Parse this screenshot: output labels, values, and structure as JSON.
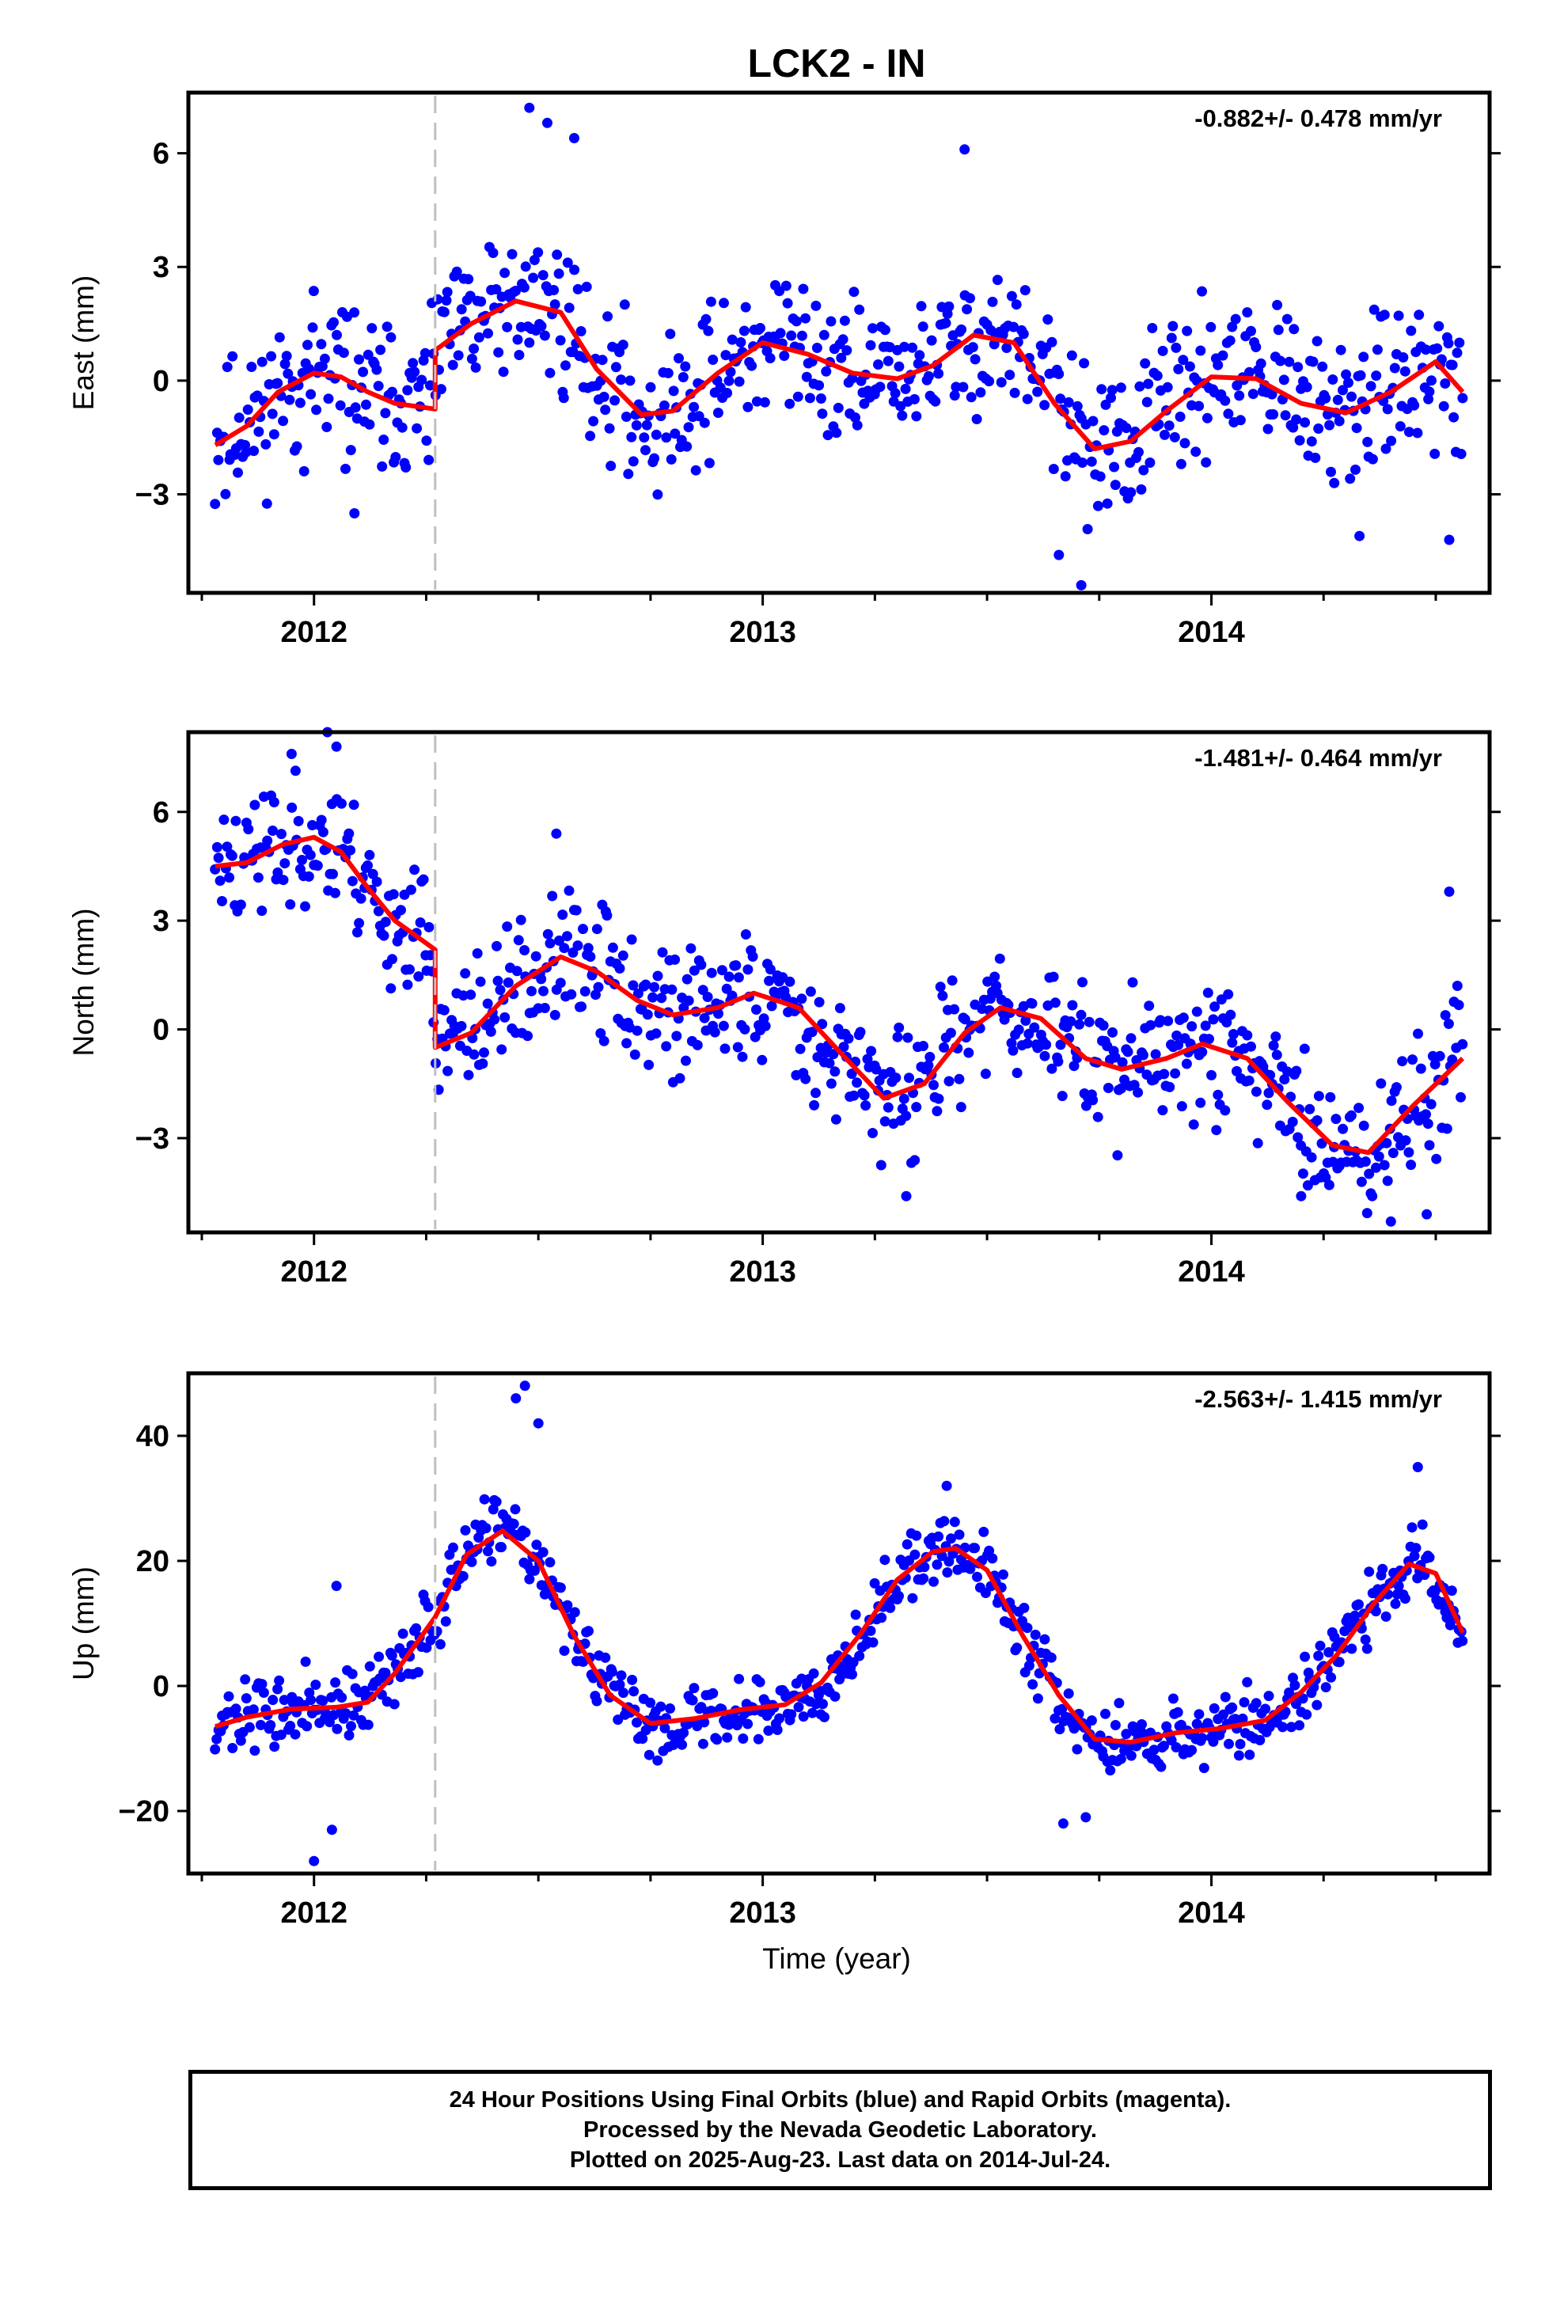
{
  "title": "LCK2 - IN",
  "chart_data": [
    {
      "type": "scatter",
      "component": "East",
      "ylabel": "East (mm)",
      "xlabel": "",
      "velocity": "-0.882+/- 0.478 mm/yr",
      "xlim": [
        2011.72,
        2014.62
      ],
      "ylim": [
        -5.6,
        7.6
      ],
      "yticks": [
        6,
        3,
        0,
        -3
      ],
      "ytick_labels": [
        "6",
        "3",
        "0",
        "−3"
      ],
      "xticks": [
        2012,
        2013,
        2014
      ],
      "xtick_labels": [
        "2012",
        "2013",
        "2014"
      ],
      "offset_epoch": 2012.27,
      "series": [
        {
          "name": "24 Hour Positions Using Final Orbits",
          "color": "#0000ff",
          "style": "points",
          "x_start": 2011.78,
          "x_end": 2014.56,
          "count": 720,
          "seed": 11,
          "approx_scatter": 1.3,
          "extreme_points": [
            [
              2012.48,
              7.2
            ],
            [
              2012.52,
              6.8
            ],
            [
              2012.58,
              6.4
            ],
            [
              2013.45,
              6.1
            ],
            [
              2013.71,
              -5.4
            ],
            [
              2013.66,
              -4.6
            ],
            [
              2014.53,
              -4.2
            ],
            [
              2014.33,
              -4.1
            ],
            [
              2012.09,
              -3.5
            ]
          ]
        },
        {
          "name": "Model fit",
          "color": "#ff0000",
          "style": "line",
          "x": [
            2011.78,
            2011.85,
            2011.92,
            2012.0,
            2012.06,
            2012.12,
            2012.18,
            2012.27,
            2012.27,
            2012.35,
            2012.45,
            2012.55,
            2012.63,
            2012.73,
            2012.8,
            2012.9,
            2013.0,
            2013.1,
            2013.2,
            2013.3,
            2013.38,
            2013.47,
            2013.56,
            2013.65,
            2013.74,
            2013.82,
            2013.9,
            2014.0,
            2014.1,
            2014.2,
            2014.3,
            2014.4,
            2014.5,
            2014.56
          ],
          "y": [
            -1.7,
            -1.2,
            -0.3,
            0.2,
            0.1,
            -0.3,
            -0.6,
            -0.75,
            0.8,
            1.5,
            2.1,
            1.8,
            0.3,
            -0.9,
            -0.8,
            0.2,
            1.0,
            0.7,
            0.2,
            0.05,
            0.4,
            1.2,
            1.0,
            -0.6,
            -1.8,
            -1.6,
            -0.8,
            0.1,
            0.05,
            -0.6,
            -0.85,
            -0.3,
            0.5,
            -0.3
          ]
        }
      ]
    },
    {
      "type": "scatter",
      "component": "North",
      "ylabel": "North (mm)",
      "xlabel": "",
      "velocity": "-1.481+/- 0.464 mm/yr",
      "xlim": [
        2011.72,
        2014.62
      ],
      "ylim": [
        -5.6,
        8.2
      ],
      "yticks": [
        6,
        3,
        0,
        -3
      ],
      "ytick_labels": [
        "6",
        "3",
        "0",
        "−3"
      ],
      "xticks": [
        2012,
        2013,
        2014
      ],
      "xtick_labels": [
        "2012",
        "2013",
        "2014"
      ],
      "offset_epoch": 2012.27,
      "series": [
        {
          "name": "24 Hour Positions Using Final Orbits",
          "color": "#0000ff",
          "style": "points",
          "x_start": 2011.78,
          "x_end": 2014.56,
          "count": 720,
          "seed": 23,
          "approx_scatter": 1.2,
          "extreme_points": [
            [
              2012.03,
              8.2
            ],
            [
              2012.05,
              7.8
            ],
            [
              2011.95,
              7.6
            ],
            [
              2012.54,
              5.4
            ],
            [
              2014.53,
              3.8
            ],
            [
              2014.4,
              -5.3
            ],
            [
              2014.48,
              -5.1
            ],
            [
              2014.2,
              -4.6
            ],
            [
              2013.32,
              -4.6
            ]
          ]
        },
        {
          "name": "Model fit",
          "color": "#ff0000",
          "style": "line",
          "x": [
            2011.78,
            2011.85,
            2011.93,
            2012.0,
            2012.06,
            2012.12,
            2012.18,
            2012.27,
            2012.27,
            2012.35,
            2012.45,
            2012.55,
            2012.63,
            2012.72,
            2012.8,
            2012.9,
            2012.98,
            2013.08,
            2013.17,
            2013.27,
            2013.36,
            2013.45,
            2013.53,
            2013.62,
            2013.72,
            2013.8,
            2013.9,
            2013.98,
            2014.08,
            2014.17,
            2014.27,
            2014.35,
            2014.45,
            2014.56
          ],
          "y": [
            4.5,
            4.6,
            5.1,
            5.3,
            4.9,
            3.9,
            3.0,
            2.2,
            -0.5,
            -0.1,
            1.2,
            2.0,
            1.6,
            0.8,
            0.4,
            0.6,
            1.0,
            0.6,
            -0.6,
            -1.9,
            -1.5,
            -0.1,
            0.6,
            0.3,
            -0.8,
            -1.1,
            -0.8,
            -0.4,
            -0.8,
            -2.0,
            -3.2,
            -3.4,
            -2.1,
            -0.8
          ]
        }
      ]
    },
    {
      "type": "scatter",
      "component": "Up",
      "ylabel": "Up (mm)",
      "xlabel": "Time (year)",
      "velocity": "-2.563+/- 1.415 mm/yr",
      "xlim": [
        2011.72,
        2014.62
      ],
      "ylim": [
        -30,
        50
      ],
      "yticks": [
        40,
        20,
        0,
        -20
      ],
      "ytick_labels": [
        "40",
        "20",
        "0",
        "−20"
      ],
      "xticks": [
        2012,
        2013,
        2014
      ],
      "xtick_labels": [
        "2012",
        "2013",
        "2014"
      ],
      "offset_epoch": 2012.27,
      "series": [
        {
          "name": "24 Hour Positions Using Final Orbits",
          "color": "#0000ff",
          "style": "points",
          "x_start": 2011.78,
          "x_end": 2014.56,
          "count": 720,
          "seed": 37,
          "approx_scatter": 3.6,
          "extreme_points": [
            [
              2012.47,
              48
            ],
            [
              2012.45,
              46
            ],
            [
              2012.5,
              42
            ],
            [
              2014.46,
              35
            ],
            [
              2013.41,
              32
            ],
            [
              2012.0,
              -28
            ],
            [
              2012.04,
              -23
            ],
            [
              2013.67,
              -22
            ],
            [
              2013.72,
              -21
            ],
            [
              2012.05,
              16
            ]
          ]
        },
        {
          "name": "Model fit",
          "color": "#ff0000",
          "style": "line",
          "x": [
            2011.78,
            2011.85,
            2011.95,
            2012.05,
            2012.12,
            2012.18,
            2012.27,
            2012.34,
            2012.42,
            2012.5,
            2012.58,
            2012.66,
            2012.75,
            2012.85,
            2012.95,
            2013.05,
            2013.13,
            2013.22,
            2013.3,
            2013.38,
            2013.43,
            2013.5,
            2013.58,
            2013.66,
            2013.74,
            2013.82,
            2013.92,
            2014.02,
            2014.12,
            2014.2,
            2014.28,
            2014.36,
            2014.44,
            2014.5,
            2014.56
          ],
          "y": [
            -6.5,
            -5.0,
            -3.7,
            -3.4,
            -2.6,
            2.0,
            11.0,
            21.0,
            24.8,
            20.0,
            8.0,
            -1.5,
            -6.0,
            -5.2,
            -3.8,
            -3.0,
            0.5,
            8.5,
            17.0,
            21.5,
            22.0,
            18.5,
            8.0,
            -1.5,
            -8.5,
            -9.0,
            -7.5,
            -6.8,
            -5.5,
            -1.0,
            5.0,
            13.0,
            19.5,
            18.0,
            8.5
          ]
        }
      ]
    }
  ],
  "footer": {
    "line1": "24 Hour Positions Using Final Orbits (blue) and Rapid Orbits (magenta).",
    "line2": "Processed by the Nevada Geodetic Laboratory.",
    "line3": "Plotted on 2025-Aug-23. Last data on 2014-Jul-24."
  }
}
